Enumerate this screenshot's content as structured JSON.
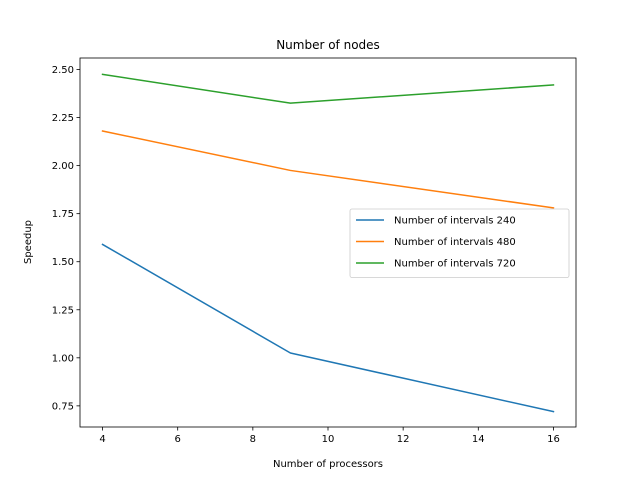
{
  "chart_data": {
    "type": "line",
    "title": "Number of nodes",
    "xlabel": "Number of processors",
    "ylabel": "Speedup",
    "x": [
      4,
      9,
      16
    ],
    "xlim": [
      3.4,
      16.6
    ],
    "ylim": [
      0.64,
      2.56
    ],
    "xticks": [
      4,
      6,
      8,
      10,
      12,
      14,
      16
    ],
    "xtick_labels": [
      "4",
      "6",
      "8",
      "10",
      "12",
      "14",
      "16"
    ],
    "yticks": [
      0.75,
      1.0,
      1.25,
      1.5,
      1.75,
      2.0,
      2.25,
      2.5
    ],
    "ytick_labels": [
      "0.75",
      "1.00",
      "1.25",
      "1.50",
      "1.75",
      "2.00",
      "2.25",
      "2.50"
    ],
    "grid": false,
    "legend_position": "center-right",
    "series": [
      {
        "name": "Number of intervals 240",
        "color": "#1f77b4",
        "values": [
          1.59,
          1.025,
          0.72
        ]
      },
      {
        "name": "Number of intervals 480",
        "color": "#ff7f0e",
        "values": [
          2.18,
          1.975,
          1.78
        ]
      },
      {
        "name": "Number of intervals 720",
        "color": "#2ca02c",
        "values": [
          2.475,
          2.325,
          2.42
        ]
      }
    ]
  }
}
